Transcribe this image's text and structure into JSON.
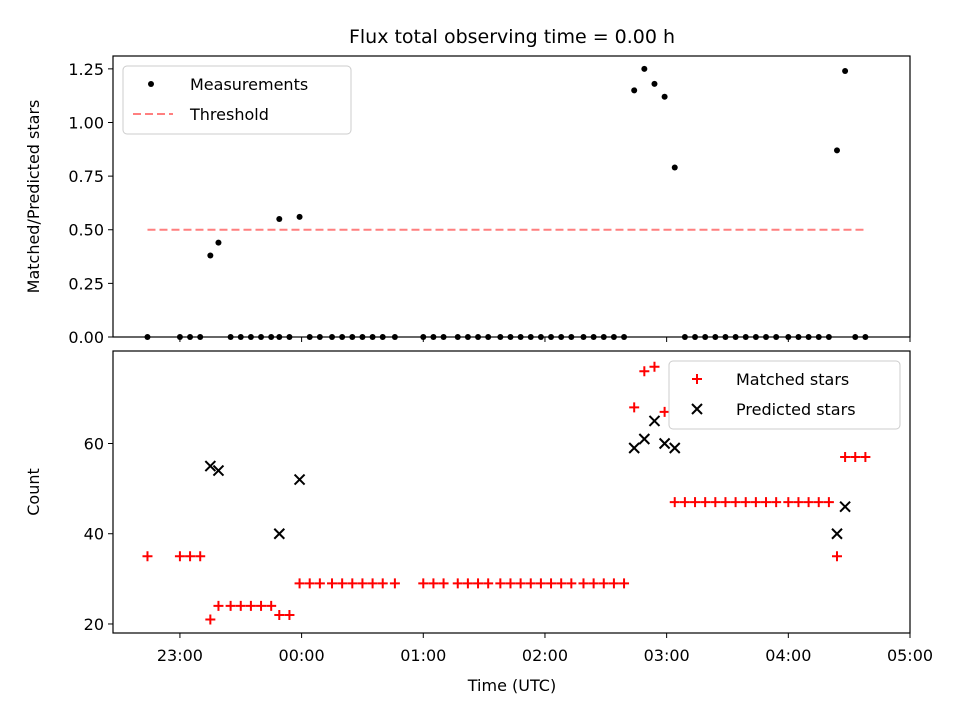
{
  "title": "Flux total observing time = 0.00 h",
  "xlabel": "Time (UTC)",
  "chart_data": [
    {
      "type": "scatter",
      "ylabel": "Matched/Predicted stars",
      "xlim": [
        "22:27",
        "05:00"
      ],
      "ylim": [
        0,
        1.31
      ],
      "yticks": [
        "0.00",
        "0.25",
        "0.50",
        "0.75",
        "1.00",
        "1.25"
      ],
      "legend_position": "top-left",
      "series": [
        {
          "name": "Measurements",
          "marker": "dot",
          "color": "#000000",
          "points": [
            [
              "22:44",
              0
            ],
            [
              "23:00",
              0
            ],
            [
              "23:05",
              0
            ],
            [
              "23:10",
              0
            ],
            [
              "23:15",
              0.38
            ],
            [
              "23:19",
              0.44
            ],
            [
              "23:25",
              0
            ],
            [
              "23:30",
              0
            ],
            [
              "23:35",
              0
            ],
            [
              "23:40",
              0
            ],
            [
              "23:45",
              0
            ],
            [
              "23:49",
              0
            ],
            [
              "23:49",
              0.55
            ],
            [
              "23:54",
              0
            ],
            [
              "23:59",
              0.56
            ],
            [
              "00:04",
              0
            ],
            [
              "00:09",
              0
            ],
            [
              "00:15",
              0
            ],
            [
              "00:20",
              0
            ],
            [
              "00:25",
              0
            ],
            [
              "00:30",
              0
            ],
            [
              "00:35",
              0
            ],
            [
              "00:40",
              0
            ],
            [
              "00:46",
              0
            ],
            [
              "01:00",
              0
            ],
            [
              "01:05",
              0
            ],
            [
              "01:10",
              0
            ],
            [
              "01:17",
              0
            ],
            [
              "01:22",
              0
            ],
            [
              "01:27",
              0
            ],
            [
              "01:32",
              0
            ],
            [
              "01:38",
              0
            ],
            [
              "01:43",
              0
            ],
            [
              "01:48",
              0
            ],
            [
              "01:53",
              0
            ],
            [
              "01:58",
              0
            ],
            [
              "02:03",
              0
            ],
            [
              "02:08",
              0
            ],
            [
              "02:13",
              0
            ],
            [
              "02:19",
              0
            ],
            [
              "02:24",
              0
            ],
            [
              "02:29",
              0
            ],
            [
              "02:34",
              0
            ],
            [
              "02:39",
              0
            ],
            [
              "02:44",
              1.15
            ],
            [
              "02:49",
              1.25
            ],
            [
              "02:54",
              1.18
            ],
            [
              "02:59",
              1.12
            ],
            [
              "03:04",
              0.79
            ],
            [
              "03:09",
              0
            ],
            [
              "03:14",
              0
            ],
            [
              "03:19",
              0
            ],
            [
              "03:24",
              0
            ],
            [
              "03:29",
              0
            ],
            [
              "03:34",
              0
            ],
            [
              "03:39",
              0
            ],
            [
              "03:44",
              0
            ],
            [
              "03:49",
              0
            ],
            [
              "03:54",
              0
            ],
            [
              "04:00",
              0
            ],
            [
              "04:05",
              0
            ],
            [
              "04:10",
              0
            ],
            [
              "04:15",
              0
            ],
            [
              "04:20",
              0
            ],
            [
              "04:24",
              0.87
            ],
            [
              "04:28",
              1.24
            ],
            [
              "04:33",
              0
            ],
            [
              "04:38",
              0
            ]
          ]
        },
        {
          "name": "Threshold",
          "marker": "dashed-line",
          "color": "#ff7f7f",
          "points": [
            [
              "22:44",
              0.5
            ],
            [
              "04:38",
              0.5
            ]
          ]
        }
      ]
    },
    {
      "type": "scatter",
      "ylabel": "Count",
      "xlim": [
        "22:27",
        "05:00"
      ],
      "ylim": [
        18,
        80.5
      ],
      "yticks": [
        "20",
        "40",
        "60"
      ],
      "xticks": [
        "23:00",
        "00:00",
        "01:00",
        "02:00",
        "03:00",
        "04:00",
        "05:00"
      ],
      "legend_position": "top-right",
      "series": [
        {
          "name": "Matched stars",
          "marker": "plus",
          "color": "#ff0000",
          "points": [
            [
              "22:44",
              35
            ],
            [
              "23:00",
              35
            ],
            [
              "23:05",
              35
            ],
            [
              "23:10",
              35
            ],
            [
              "23:15",
              21
            ],
            [
              "23:19",
              24
            ],
            [
              "23:25",
              24
            ],
            [
              "23:30",
              24
            ],
            [
              "23:35",
              24
            ],
            [
              "23:40",
              24
            ],
            [
              "23:45",
              24
            ],
            [
              "23:49",
              22
            ],
            [
              "23:54",
              22
            ],
            [
              "23:59",
              29
            ],
            [
              "00:04",
              29
            ],
            [
              "00:09",
              29
            ],
            [
              "00:15",
              29
            ],
            [
              "00:20",
              29
            ],
            [
              "00:25",
              29
            ],
            [
              "00:30",
              29
            ],
            [
              "00:35",
              29
            ],
            [
              "00:40",
              29
            ],
            [
              "00:46",
              29
            ],
            [
              "01:00",
              29
            ],
            [
              "01:05",
              29
            ],
            [
              "01:10",
              29
            ],
            [
              "01:17",
              29
            ],
            [
              "01:22",
              29
            ],
            [
              "01:27",
              29
            ],
            [
              "01:32",
              29
            ],
            [
              "01:38",
              29
            ],
            [
              "01:43",
              29
            ],
            [
              "01:48",
              29
            ],
            [
              "01:53",
              29
            ],
            [
              "01:58",
              29
            ],
            [
              "02:03",
              29
            ],
            [
              "02:08",
              29
            ],
            [
              "02:13",
              29
            ],
            [
              "02:19",
              29
            ],
            [
              "02:24",
              29
            ],
            [
              "02:29",
              29
            ],
            [
              "02:34",
              29
            ],
            [
              "02:39",
              29
            ],
            [
              "02:44",
              68
            ],
            [
              "02:49",
              76
            ],
            [
              "02:54",
              77
            ],
            [
              "02:59",
              67
            ],
            [
              "03:04",
              47
            ],
            [
              "03:09",
              47
            ],
            [
              "03:14",
              47
            ],
            [
              "03:19",
              47
            ],
            [
              "03:24",
              47
            ],
            [
              "03:29",
              47
            ],
            [
              "03:34",
              47
            ],
            [
              "03:39",
              47
            ],
            [
              "03:44",
              47
            ],
            [
              "03:49",
              47
            ],
            [
              "03:54",
              47
            ],
            [
              "04:00",
              47
            ],
            [
              "04:05",
              47
            ],
            [
              "04:10",
              47
            ],
            [
              "04:15",
              47
            ],
            [
              "04:20",
              47
            ],
            [
              "04:24",
              35
            ],
            [
              "04:28",
              57
            ],
            [
              "04:33",
              57
            ],
            [
              "04:38",
              57
            ]
          ]
        },
        {
          "name": "Predicted stars",
          "marker": "cross",
          "color": "#000000",
          "points": [
            [
              "23:15",
              55
            ],
            [
              "23:19",
              54
            ],
            [
              "23:49",
              40
            ],
            [
              "23:59",
              52
            ],
            [
              "02:44",
              59
            ],
            [
              "02:49",
              61
            ],
            [
              "02:54",
              65
            ],
            [
              "02:59",
              60
            ],
            [
              "03:04",
              59
            ],
            [
              "04:24",
              40
            ],
            [
              "04:28",
              46
            ]
          ]
        }
      ]
    }
  ]
}
